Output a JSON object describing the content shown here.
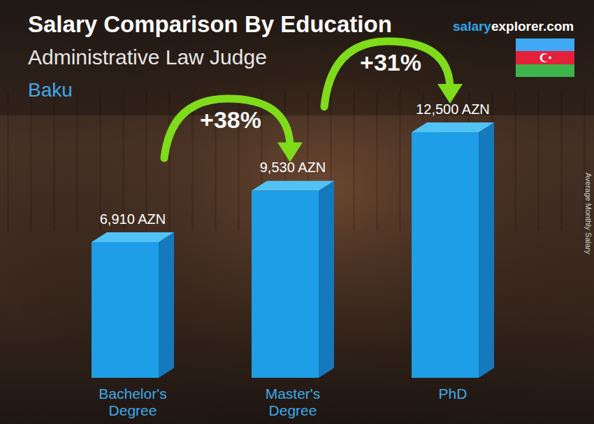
{
  "chart_data": {
    "type": "bar",
    "title": "Salary Comparison By Education",
    "subtitle": "Administrative Law Judge",
    "location": "Baku",
    "site": [
      "salary",
      "explorer.com"
    ],
    "y_label": "Average Monthly Salary",
    "categories": [
      "Bachelor's Degree",
      "Master's Degree",
      "PhD"
    ],
    "values": [
      6910,
      9530,
      12500
    ],
    "value_labels": [
      "6,910 AZN",
      "9,530 AZN",
      "12,500 AZN"
    ],
    "annotations": [
      "+38%",
      "+31%"
    ],
    "color": "#1e9ee6",
    "ylim": [
      0,
      13000
    ],
    "data_labels": true,
    "tick_labels": false,
    "grid": false
  }
}
